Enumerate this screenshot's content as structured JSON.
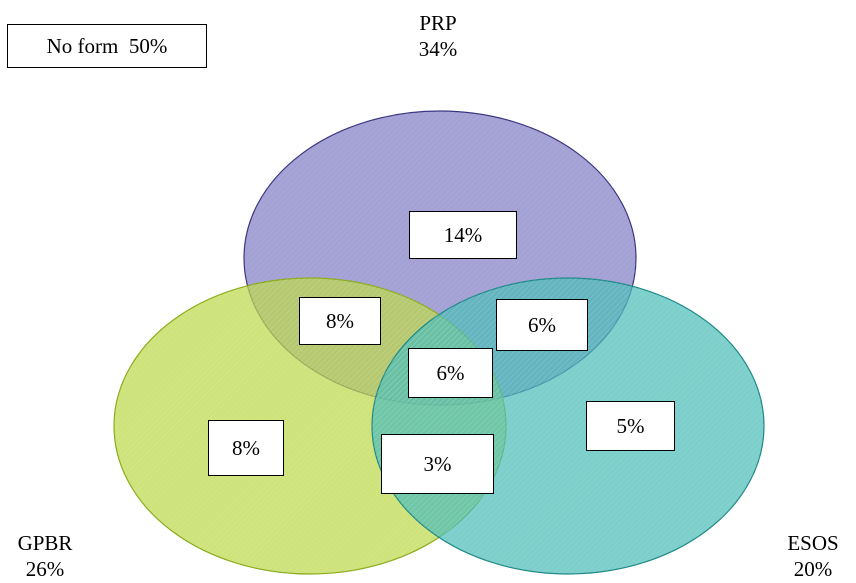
{
  "outside": {
    "label": "No form",
    "value": "50%"
  },
  "sets": {
    "prp": {
      "name": "PRP",
      "value": "34%",
      "fill": "#8b86c9",
      "stroke": "#3a3580"
    },
    "gpbr": {
      "name": "GPBR",
      "value": "26%",
      "fill": "#bcd84a",
      "stroke": "#8aac1c"
    },
    "esos": {
      "name": "ESOS",
      "value": "20%",
      "fill": "#4bbcb8",
      "stroke": "#1e8a86"
    }
  },
  "regions": {
    "prp_only": "14%",
    "prp_gpbr": "8%",
    "prp_esos": "6%",
    "all_three": "6%",
    "gpbr_only": "8%",
    "gpbr_esos": "3%",
    "esos_only": "5%"
  }
}
